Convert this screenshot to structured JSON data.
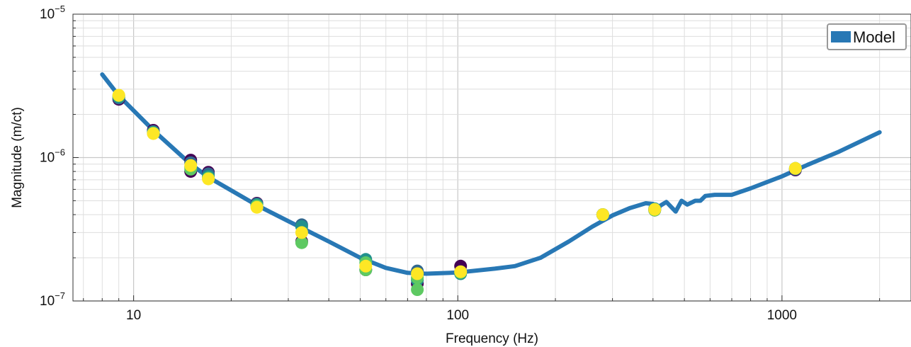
{
  "chart_data": {
    "type": "line",
    "xlabel": "Frequency (Hz)",
    "ylabel": "Magnitude (m/ct)",
    "xscale": "log",
    "yscale": "log",
    "xlim": [
      6.5,
      2500
    ],
    "ylim": [
      1e-07,
      1e-05
    ],
    "grid": true,
    "legend": {
      "placement": "top-right",
      "entries": [
        "Model"
      ]
    },
    "x_tick_labels": [
      {
        "value": 10,
        "label": "10"
      },
      {
        "value": 100,
        "label": "100"
      },
      {
        "value": 1000,
        "label": "1000"
      }
    ],
    "y_tick_labels": [
      {
        "value": 1e-07,
        "base": "10",
        "exp": "−7"
      },
      {
        "value": 1e-06,
        "base": "10",
        "exp": "−6"
      },
      {
        "value": 1e-05,
        "base": "10",
        "exp": "−5"
      }
    ],
    "colors": {
      "model": "#2878b5",
      "points": [
        "#440154",
        "#31688e",
        "#21918c",
        "#5ec962",
        "#fde725"
      ]
    },
    "series": [
      {
        "name": "Model",
        "type": "line",
        "points": [
          [
            8,
            3.8e-06
          ],
          [
            9,
            2.7e-06
          ],
          [
            11.5,
            1.55e-06
          ],
          [
            15,
            9e-07
          ],
          [
            17,
            7.3e-07
          ],
          [
            20,
            5.9e-07
          ],
          [
            24,
            4.65e-07
          ],
          [
            30,
            3.6e-07
          ],
          [
            40,
            2.6e-07
          ],
          [
            50,
            2e-07
          ],
          [
            60,
            1.7e-07
          ],
          [
            70,
            1.57e-07
          ],
          [
            80,
            1.55e-07
          ],
          [
            100,
            1.58e-07
          ],
          [
            130,
            1.68e-07
          ],
          [
            150,
            1.75e-07
          ],
          [
            180,
            2e-07
          ],
          [
            220,
            2.6e-07
          ],
          [
            260,
            3.3e-07
          ],
          [
            300,
            3.95e-07
          ],
          [
            340,
            4.45e-07
          ],
          [
            380,
            4.8e-07
          ],
          [
            400,
            4.75e-07
          ],
          [
            410,
            4.1e-07
          ],
          [
            420,
            4.6e-07
          ],
          [
            440,
            4.9e-07
          ],
          [
            470,
            4.2e-07
          ],
          [
            490,
            5e-07
          ],
          [
            510,
            4.7e-07
          ],
          [
            540,
            5e-07
          ],
          [
            560,
            5e-07
          ],
          [
            580,
            5.4e-07
          ],
          [
            620,
            5.5e-07
          ],
          [
            700,
            5.5e-07
          ],
          [
            800,
            6.1e-07
          ],
          [
            1000,
            7.4e-07
          ],
          [
            1200,
            8.9e-07
          ],
          [
            1500,
            1.1e-06
          ],
          [
            2000,
            1.5e-06
          ]
        ]
      },
      {
        "name": "",
        "type": "scatter",
        "points": [
          [
            9,
            2.55e-06,
            0
          ],
          [
            9,
            2.6e-06,
            1
          ],
          [
            9,
            2.65e-06,
            2
          ],
          [
            9,
            2.7e-06,
            3
          ],
          [
            9,
            2.72e-06,
            4
          ],
          [
            11.5,
            1.55e-06,
            0
          ],
          [
            11.5,
            1.52e-06,
            1
          ],
          [
            11.5,
            1.5e-06,
            2
          ],
          [
            11.5,
            1.48e-06,
            3
          ],
          [
            11.5,
            1.47e-06,
            4
          ],
          [
            15,
            8e-07,
            0
          ],
          [
            15,
            9.6e-07,
            0
          ],
          [
            15,
            9.2e-07,
            1
          ],
          [
            15,
            8.6e-07,
            2
          ],
          [
            15,
            8.3e-07,
            3
          ],
          [
            15,
            8.8e-07,
            4
          ],
          [
            17,
            7.9e-07,
            0
          ],
          [
            17,
            7.7e-07,
            1
          ],
          [
            17,
            7.4e-07,
            2
          ],
          [
            17,
            7.2e-07,
            3
          ],
          [
            17,
            7.1e-07,
            4
          ],
          [
            24,
            4.8e-07,
            0
          ],
          [
            24,
            4.75e-07,
            1
          ],
          [
            24,
            4.7e-07,
            2
          ],
          [
            24,
            4.6e-07,
            3
          ],
          [
            24,
            4.5e-07,
            4
          ],
          [
            33,
            2.6e-07,
            0
          ],
          [
            33,
            3.4e-07,
            1
          ],
          [
            33,
            3.3e-07,
            2
          ],
          [
            33,
            2.55e-07,
            3
          ],
          [
            33,
            3e-07,
            4
          ],
          [
            52,
            1.65e-07,
            0
          ],
          [
            52,
            1.95e-07,
            2
          ],
          [
            52,
            1.65e-07,
            3
          ],
          [
            52,
            1.85e-07,
            3
          ],
          [
            52,
            1.75e-07,
            4
          ],
          [
            75,
            1.32e-07,
            0
          ],
          [
            75,
            1.62e-07,
            1
          ],
          [
            75,
            1.4e-07,
            2
          ],
          [
            75,
            1.2e-07,
            3
          ],
          [
            75,
            1.45e-07,
            3
          ],
          [
            75,
            1.55e-07,
            4
          ],
          [
            102,
            1.75e-07,
            0
          ],
          [
            102,
            1.6e-07,
            1
          ],
          [
            102,
            1.55e-07,
            2
          ],
          [
            102,
            1.58e-07,
            3
          ],
          [
            102,
            1.6e-07,
            4
          ],
          [
            280,
            4e-07,
            0
          ],
          [
            280,
            4e-07,
            1
          ],
          [
            280,
            4e-07,
            2
          ],
          [
            280,
            4e-07,
            3
          ],
          [
            280,
            4e-07,
            4
          ],
          [
            405,
            4.3e-07,
            0
          ],
          [
            405,
            4.35e-07,
            1
          ],
          [
            405,
            4.4e-07,
            2
          ],
          [
            405,
            4.3e-07,
            3
          ],
          [
            405,
            4.35e-07,
            4
          ],
          [
            1100,
            8.2e-07,
            0
          ],
          [
            1100,
            8.3e-07,
            1
          ],
          [
            1100,
            8.4e-07,
            2
          ],
          [
            1100,
            8.4e-07,
            3
          ],
          [
            1100,
            8.4e-07,
            4
          ]
        ]
      }
    ]
  }
}
